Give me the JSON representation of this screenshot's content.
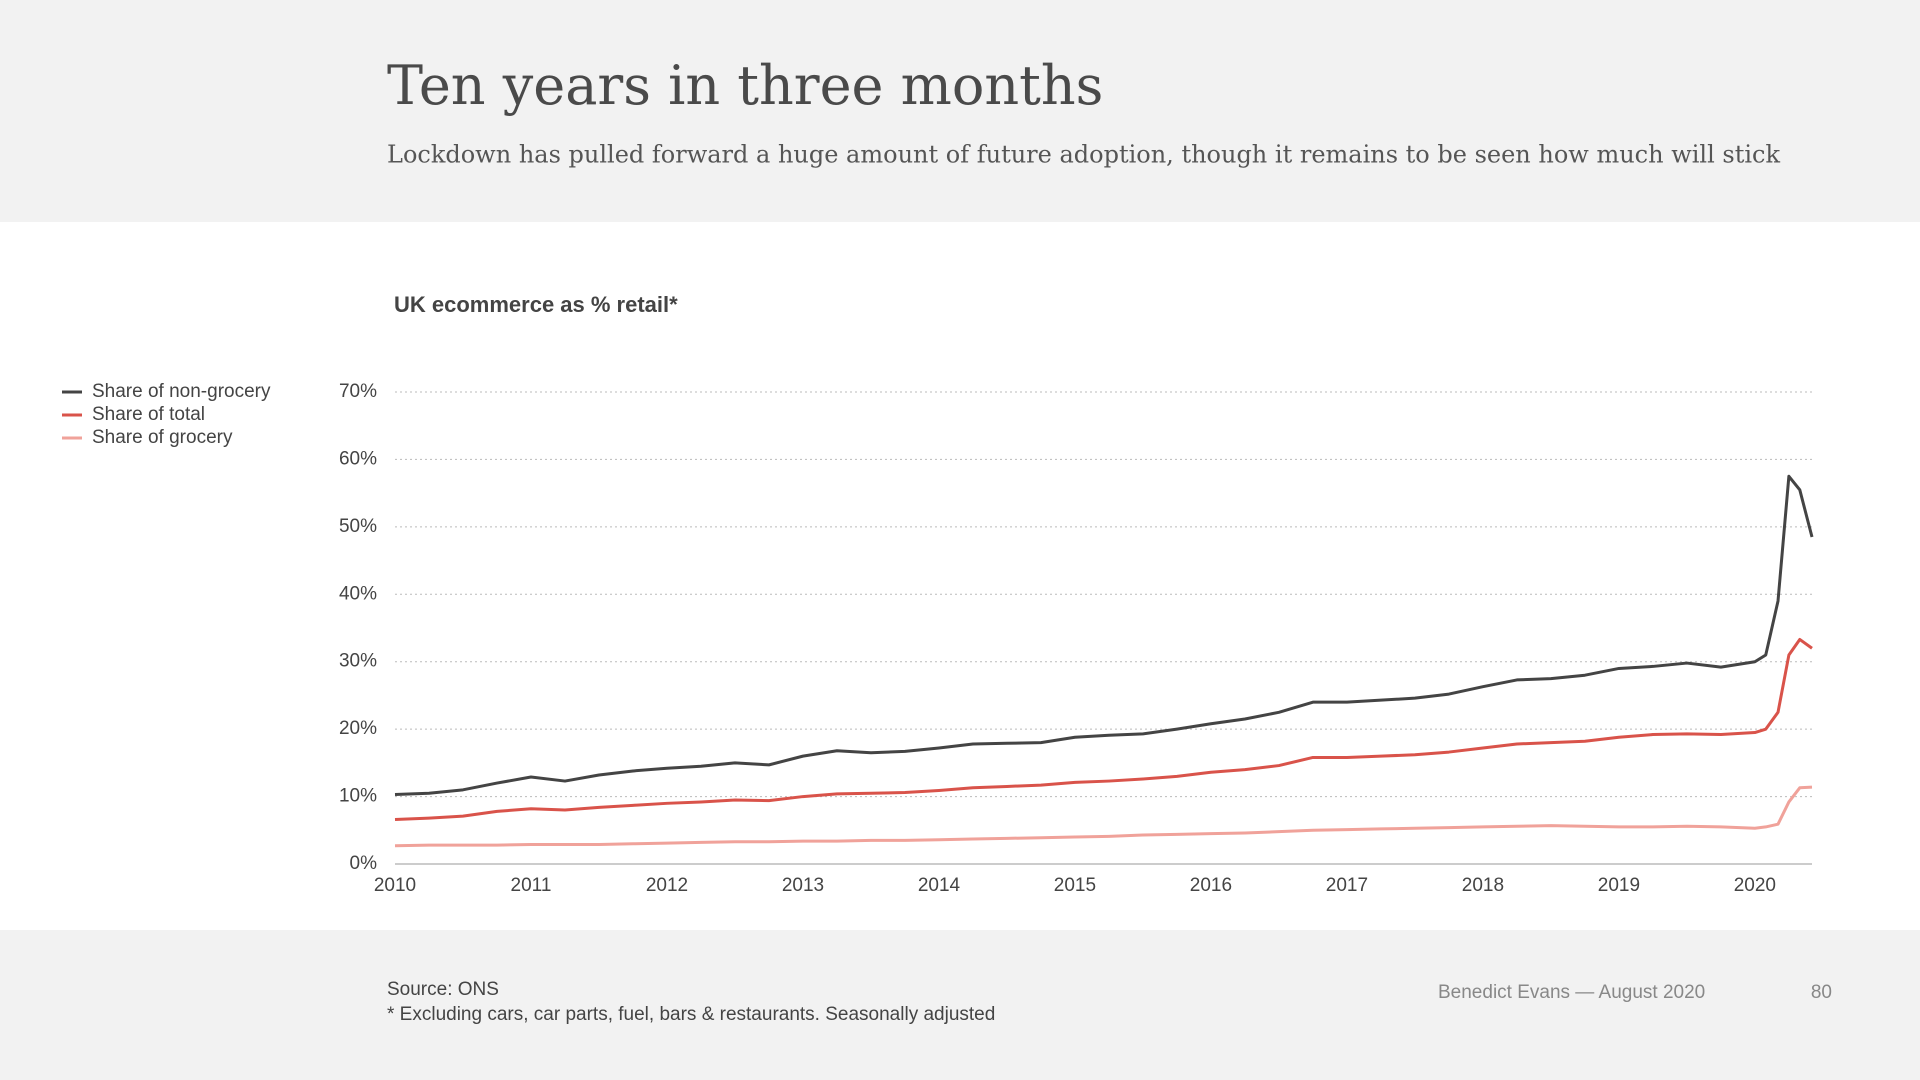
{
  "header": {
    "title": "Ten years in three months",
    "subtitle": "Lockdown has pulled forward a huge amount of future adoption, though it remains to be seen how much will stick"
  },
  "chart_data": {
    "type": "line",
    "title": "UK ecommerce as % retail*",
    "x": [
      2010,
      2010.25,
      2010.5,
      2010.75,
      2011,
      2011.25,
      2011.5,
      2011.75,
      2012,
      2012.25,
      2012.5,
      2012.75,
      2013,
      2013.25,
      2013.5,
      2013.75,
      2014,
      2014.25,
      2014.5,
      2014.75,
      2015,
      2015.25,
      2015.5,
      2015.75,
      2016,
      2016.25,
      2016.5,
      2016.75,
      2017,
      2017.25,
      2017.5,
      2017.75,
      2018,
      2018.25,
      2018.5,
      2018.75,
      2019,
      2019.25,
      2019.5,
      2019.75,
      2020,
      2020.08,
      2020.17,
      2020.25,
      2020.33,
      2020.42
    ],
    "series": [
      {
        "name": "Share of non-grocery",
        "color": "#444444",
        "values": [
          10.3,
          10.5,
          11,
          12,
          12.9,
          12.3,
          13.2,
          13.8,
          14.2,
          14.5,
          15,
          14.7,
          16,
          16.8,
          16.5,
          16.7,
          17.2,
          17.8,
          17.9,
          18,
          18.8,
          19.1,
          19.3,
          20,
          20.8,
          21.5,
          22.5,
          24,
          24,
          24.3,
          24.6,
          25.2,
          26.3,
          27.3,
          27.5,
          28,
          29,
          29.3,
          29.8,
          29.2,
          30,
          31,
          39,
          57.5,
          55.5,
          48.5
        ]
      },
      {
        "name": "Share of total",
        "color": "#d9534a",
        "values": [
          6.6,
          6.8,
          7.1,
          7.8,
          8.2,
          8,
          8.4,
          8.7,
          9,
          9.2,
          9.5,
          9.4,
          10,
          10.4,
          10.5,
          10.6,
          10.9,
          11.3,
          11.5,
          11.7,
          12.1,
          12.3,
          12.6,
          13,
          13.6,
          14,
          14.6,
          15.8,
          15.8,
          16,
          16.2,
          16.6,
          17.2,
          17.8,
          18,
          18.2,
          18.8,
          19.2,
          19.3,
          19.2,
          19.5,
          20,
          22.5,
          31,
          33.3,
          32
        ]
      },
      {
        "name": "Share of grocery",
        "color": "#f0a29a",
        "values": [
          2.7,
          2.8,
          2.8,
          2.8,
          2.9,
          2.9,
          2.9,
          3,
          3.1,
          3.2,
          3.3,
          3.3,
          3.4,
          3.4,
          3.5,
          3.5,
          3.6,
          3.7,
          3.8,
          3.9,
          4,
          4.1,
          4.3,
          4.4,
          4.5,
          4.6,
          4.8,
          5,
          5.1,
          5.2,
          5.3,
          5.4,
          5.5,
          5.6,
          5.7,
          5.6,
          5.5,
          5.5,
          5.6,
          5.5,
          5.3,
          5.5,
          5.9,
          9.2,
          11.3,
          11.4
        ]
      }
    ],
    "xlim": [
      2010,
      2020.42
    ],
    "xticks": [
      2010,
      2011,
      2012,
      2013,
      2014,
      2015,
      2016,
      2017,
      2018,
      2019,
      2020
    ],
    "ylim": [
      0,
      70
    ],
    "yticks": [
      {
        "value": 0,
        "label": "0%"
      },
      {
        "value": 10,
        "label": "10%"
      },
      {
        "value": 20,
        "label": "20%"
      },
      {
        "value": 30,
        "label": "30%"
      },
      {
        "value": 40,
        "label": "40%"
      },
      {
        "value": 50,
        "label": "50%"
      },
      {
        "value": 60,
        "label": "60%"
      },
      {
        "value": 70,
        "label": "70%"
      }
    ],
    "grid": true,
    "legend": "left"
  },
  "footer": {
    "source": "Source: ONS",
    "note": "* Excluding cars, car parts, fuel, bars & restaurants. Seasonally adjusted",
    "author": "Benedict Evans — August 2020",
    "page": "80"
  }
}
